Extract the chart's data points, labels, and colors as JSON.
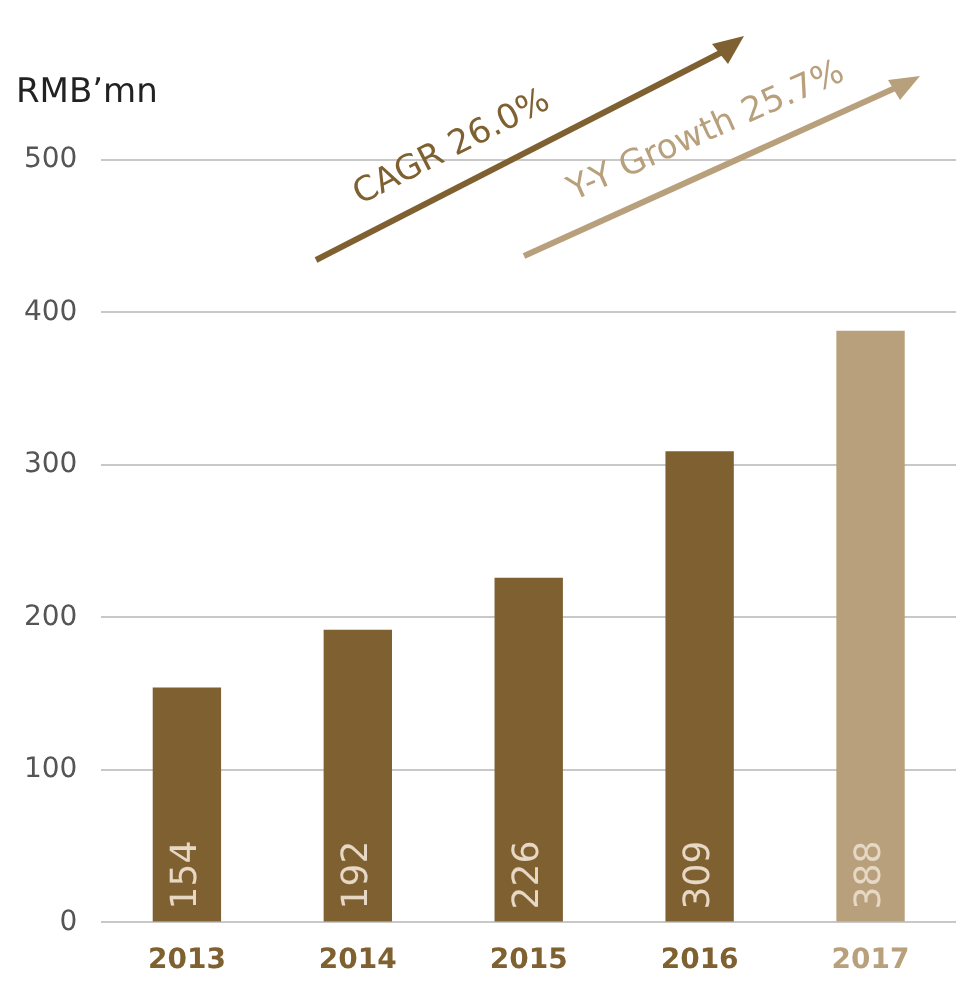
{
  "chart_data": {
    "type": "bar",
    "ylabel": "RMB’mn",
    "categories": [
      "2013",
      "2014",
      "2015",
      "2016",
      "2017"
    ],
    "values": [
      154,
      192,
      226,
      309,
      388
    ],
    "colors": [
      "#7f6030",
      "#7f6030",
      "#7f6030",
      "#7f6030",
      "#b9a07c"
    ],
    "ylim": [
      0,
      500
    ],
    "yticks": [
      0,
      100,
      200,
      300,
      400,
      500
    ],
    "grid": "y",
    "data_labels": true,
    "annotations": [
      "CAGR 26.0%",
      "Y-Y Growth 25.7%"
    ]
  }
}
